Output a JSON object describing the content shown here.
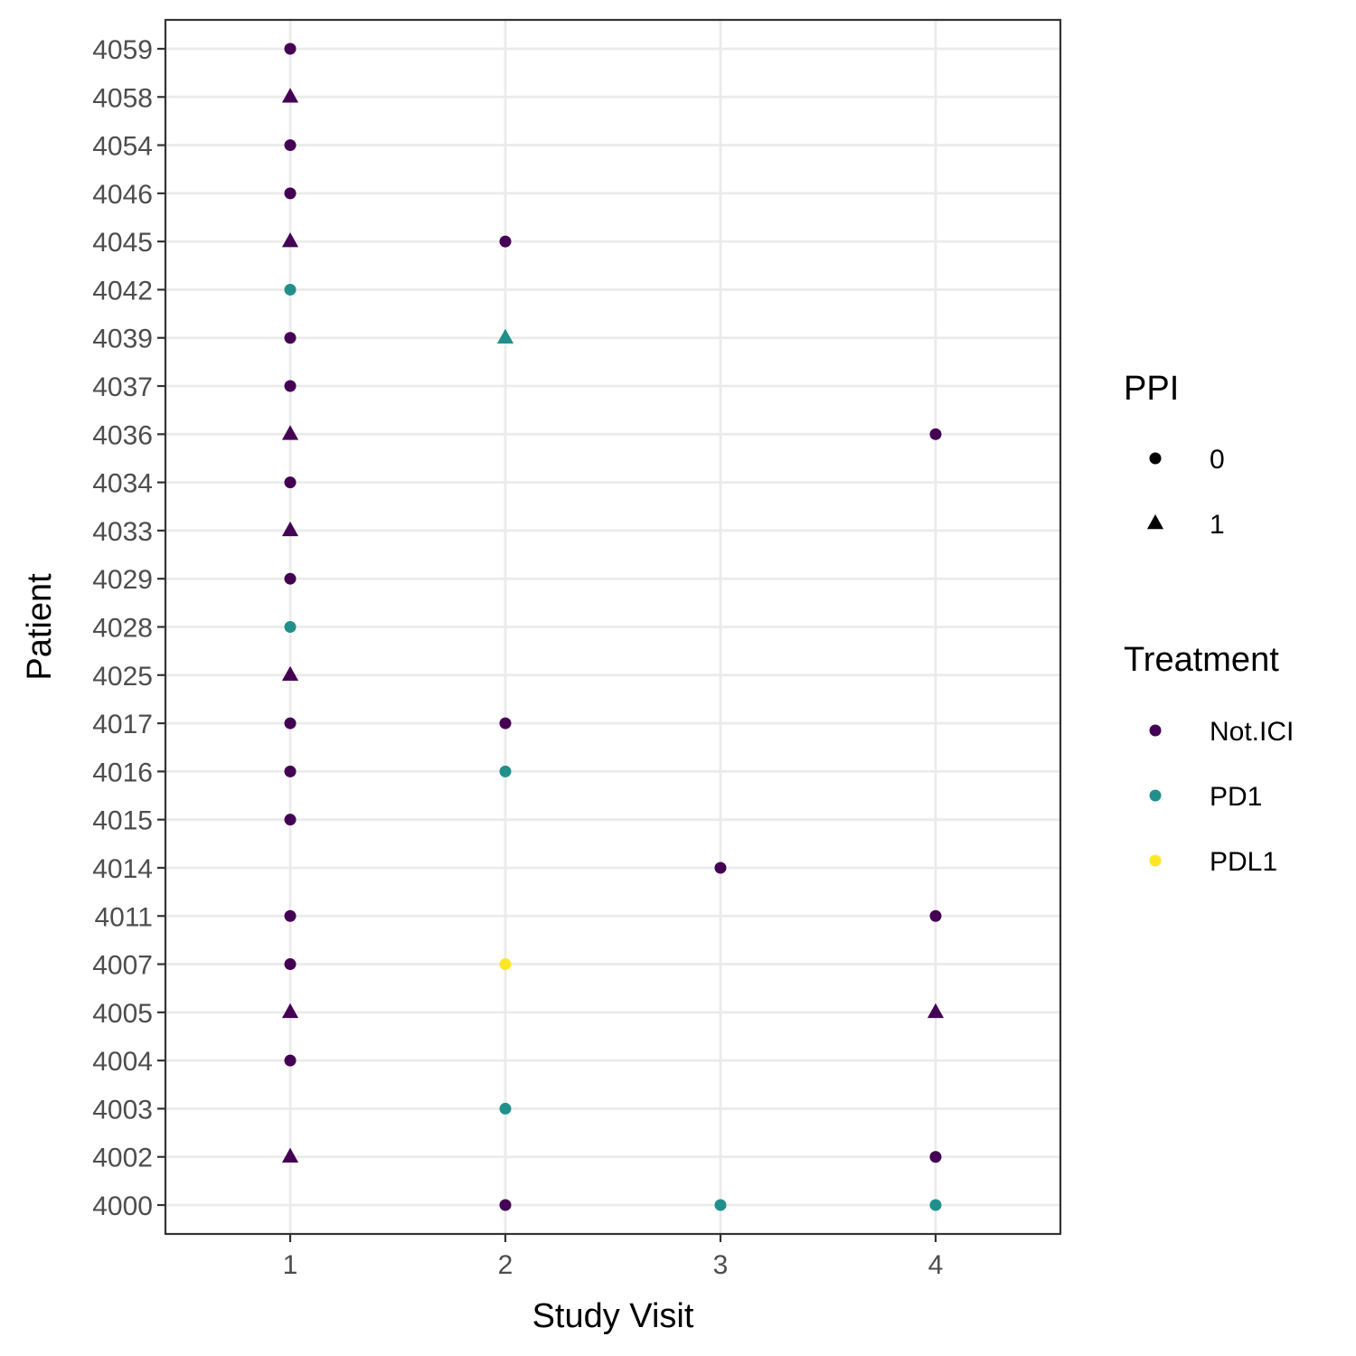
{
  "chart_data": {
    "type": "scatter",
    "xlabel": "Study Visit",
    "ylabel": "Patient",
    "x_ticks": [
      1,
      2,
      3,
      4
    ],
    "xlim": [
      0.42,
      4.58
    ],
    "y_categories": [
      "4000",
      "4002",
      "4003",
      "4004",
      "4005",
      "4007",
      "4011",
      "4014",
      "4015",
      "4016",
      "4017",
      "4025",
      "4028",
      "4029",
      "4033",
      "4034",
      "4036",
      "4037",
      "4039",
      "4042",
      "4045",
      "4046",
      "4054",
      "4058",
      "4059"
    ],
    "grid": true,
    "legend_position": "right",
    "legends": [
      {
        "title": "PPI",
        "entries": [
          {
            "label": "0",
            "shape": "circle"
          },
          {
            "label": "1",
            "shape": "triangle"
          }
        ]
      },
      {
        "title": "Treatment",
        "entries": [
          {
            "label": "Not.ICI",
            "color": "#440154"
          },
          {
            "label": "PD1",
            "color": "#21908C"
          },
          {
            "label": "PDL1",
            "color": "#FDE725"
          }
        ]
      }
    ],
    "points": [
      {
        "patient": "4059",
        "visit": 1,
        "ppi": "0",
        "treatment": "Not.ICI"
      },
      {
        "patient": "4058",
        "visit": 1,
        "ppi": "1",
        "treatment": "Not.ICI"
      },
      {
        "patient": "4054",
        "visit": 1,
        "ppi": "0",
        "treatment": "Not.ICI"
      },
      {
        "patient": "4046",
        "visit": 1,
        "ppi": "0",
        "treatment": "Not.ICI"
      },
      {
        "patient": "4045",
        "visit": 1,
        "ppi": "1",
        "treatment": "Not.ICI"
      },
      {
        "patient": "4045",
        "visit": 2,
        "ppi": "0",
        "treatment": "Not.ICI"
      },
      {
        "patient": "4042",
        "visit": 1,
        "ppi": "0",
        "treatment": "PD1"
      },
      {
        "patient": "4039",
        "visit": 1,
        "ppi": "0",
        "treatment": "Not.ICI"
      },
      {
        "patient": "4039",
        "visit": 2,
        "ppi": "1",
        "treatment": "PD1"
      },
      {
        "patient": "4037",
        "visit": 1,
        "ppi": "0",
        "treatment": "Not.ICI"
      },
      {
        "patient": "4036",
        "visit": 1,
        "ppi": "1",
        "treatment": "Not.ICI"
      },
      {
        "patient": "4036",
        "visit": 4,
        "ppi": "0",
        "treatment": "Not.ICI"
      },
      {
        "patient": "4034",
        "visit": 1,
        "ppi": "0",
        "treatment": "Not.ICI"
      },
      {
        "patient": "4033",
        "visit": 1,
        "ppi": "1",
        "treatment": "Not.ICI"
      },
      {
        "patient": "4029",
        "visit": 1,
        "ppi": "0",
        "treatment": "Not.ICI"
      },
      {
        "patient": "4028",
        "visit": 1,
        "ppi": "0",
        "treatment": "PD1"
      },
      {
        "patient": "4025",
        "visit": 1,
        "ppi": "1",
        "treatment": "Not.ICI"
      },
      {
        "patient": "4017",
        "visit": 1,
        "ppi": "0",
        "treatment": "Not.ICI"
      },
      {
        "patient": "4017",
        "visit": 2,
        "ppi": "0",
        "treatment": "Not.ICI"
      },
      {
        "patient": "4016",
        "visit": 1,
        "ppi": "0",
        "treatment": "Not.ICI"
      },
      {
        "patient": "4016",
        "visit": 2,
        "ppi": "0",
        "treatment": "PD1"
      },
      {
        "patient": "4015",
        "visit": 1,
        "ppi": "0",
        "treatment": "Not.ICI"
      },
      {
        "patient": "4014",
        "visit": 3,
        "ppi": "0",
        "treatment": "Not.ICI"
      },
      {
        "patient": "4011",
        "visit": 1,
        "ppi": "0",
        "treatment": "Not.ICI"
      },
      {
        "patient": "4011",
        "visit": 4,
        "ppi": "0",
        "treatment": "Not.ICI"
      },
      {
        "patient": "4007",
        "visit": 1,
        "ppi": "0",
        "treatment": "Not.ICI"
      },
      {
        "patient": "4007",
        "visit": 2,
        "ppi": "0",
        "treatment": "PDL1"
      },
      {
        "patient": "4005",
        "visit": 1,
        "ppi": "1",
        "treatment": "Not.ICI"
      },
      {
        "patient": "4005",
        "visit": 4,
        "ppi": "1",
        "treatment": "Not.ICI"
      },
      {
        "patient": "4004",
        "visit": 1,
        "ppi": "0",
        "treatment": "Not.ICI"
      },
      {
        "patient": "4003",
        "visit": 2,
        "ppi": "0",
        "treatment": "PD1"
      },
      {
        "patient": "4002",
        "visit": 1,
        "ppi": "1",
        "treatment": "Not.ICI"
      },
      {
        "patient": "4002",
        "visit": 4,
        "ppi": "0",
        "treatment": "Not.ICI"
      },
      {
        "patient": "4000",
        "visit": 2,
        "ppi": "0",
        "treatment": "Not.ICI"
      },
      {
        "patient": "4000",
        "visit": 3,
        "ppi": "0",
        "treatment": "PD1"
      },
      {
        "patient": "4000",
        "visit": 4,
        "ppi": "0",
        "treatment": "PD1"
      }
    ]
  }
}
